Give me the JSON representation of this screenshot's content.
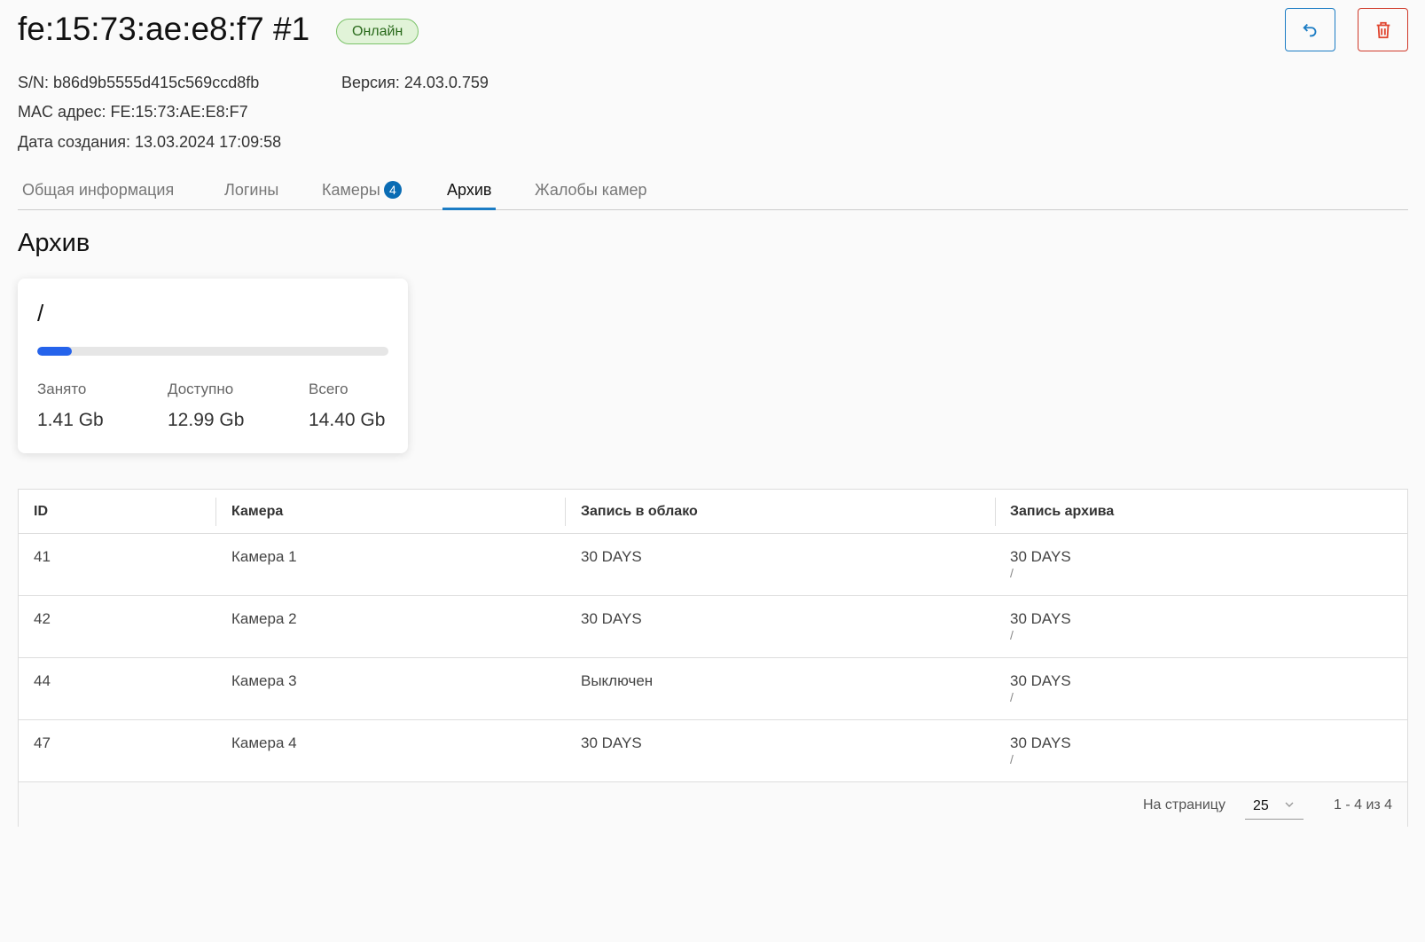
{
  "header": {
    "title": "fe:15:73:ae:e8:f7 #1",
    "status": "Онлайн",
    "sn": "S/N: b86d9b5555d415c569ccd8fb",
    "version": "Версия: 24.03.0.759",
    "mac": "MAC адрес: FE:15:73:AE:E8:F7",
    "created": "Дата создания: 13.03.2024 17:09:58",
    "accent": "#1b7cc4",
    "danger": "#d03a2a"
  },
  "tabs": [
    {
      "label": "Общая информация"
    },
    {
      "label": "Логины"
    },
    {
      "label": "Камеры",
      "count": "4"
    },
    {
      "label": "Архив",
      "active": true
    },
    {
      "label": "Жалобы камер"
    }
  ],
  "section_title": "Архив",
  "storage": {
    "path": "/",
    "used_fraction": 0.098,
    "used_label": "Занято",
    "used": "1.41 Gb",
    "free_label": "Доступно",
    "free": "12.99 Gb",
    "total_label": "Всего",
    "total": "14.40 Gb"
  },
  "table": {
    "columns": [
      "ID",
      "Камера",
      "Запись в облако",
      "Запись архива"
    ],
    "rows": [
      {
        "id": "41",
        "camera": "Камера 1",
        "cloud": "30 DAYS",
        "archive": "30 DAYS",
        "path": "/"
      },
      {
        "id": "42",
        "camera": "Камера 2",
        "cloud": "30 DAYS",
        "archive": "30 DAYS",
        "path": "/"
      },
      {
        "id": "44",
        "camera": "Камера 3",
        "cloud": "Выключен",
        "archive": "30 DAYS",
        "path": "/"
      },
      {
        "id": "47",
        "camera": "Камера 4",
        "cloud": "30 DAYS",
        "archive": "30 DAYS",
        "path": "/"
      }
    ]
  },
  "pagination": {
    "per_page_label": "На страницу",
    "per_page": "25",
    "range": "1 - 4 из 4"
  }
}
